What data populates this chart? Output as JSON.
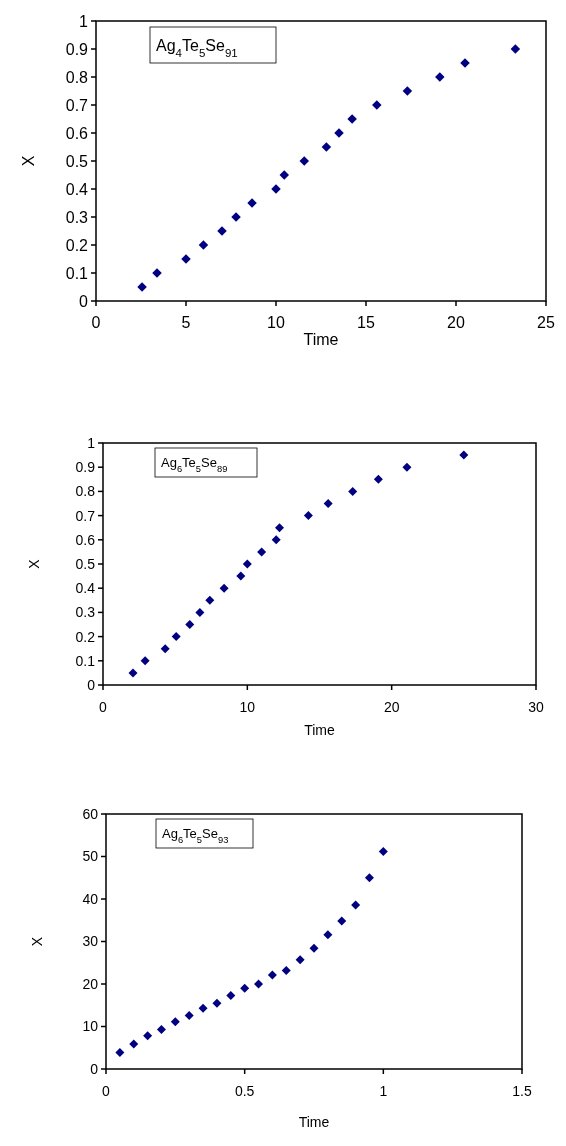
{
  "chart_data": [
    {
      "type": "scatter",
      "xlabel": "Time",
      "ylabel": "X",
      "annotations": [
        "Ag$_{4}$Te$_{5}$Se$_{91}$"
      ],
      "marker": "diamond",
      "grid": false,
      "xlim": [
        0,
        25
      ],
      "xticks": [
        0,
        5,
        10,
        15,
        20,
        25
      ],
      "ylim": [
        0,
        1
      ],
      "yticks": [
        0,
        0.1,
        0.2,
        0.3,
        0.4,
        0.5,
        0.6,
        0.7,
        0.8,
        0.9,
        1
      ],
      "series": [
        {
          "color": "#000080",
          "x": [
            2.56,
            3.39,
            5.0,
            5.97,
            7.0,
            7.78,
            8.67,
            10.0,
            10.46,
            11.57,
            12.8,
            13.5,
            14.23,
            15.6,
            17.3,
            19.1,
            20.5,
            23.3
          ],
          "values": [
            0.05,
            0.1,
            0.15,
            0.2,
            0.25,
            0.3,
            0.35,
            0.4,
            0.45,
            0.5,
            0.55,
            0.6,
            0.65,
            0.7,
            0.75,
            0.8,
            0.85,
            0.9
          ]
        }
      ]
    },
    {
      "type": "scatter",
      "xlabel": "Time",
      "ylabel": "X",
      "annotations": [
        "Ag$_{6}$Te$_{5}$Se$_{89}$"
      ],
      "marker": "diamond",
      "grid": false,
      "xlim": [
        0,
        30
      ],
      "xticks": [
        0,
        10,
        20,
        30
      ],
      "ylim": [
        0,
        1
      ],
      "yticks": [
        0,
        0.1,
        0.2,
        0.3,
        0.4,
        0.5,
        0.6,
        0.7,
        0.8,
        0.9,
        1
      ],
      "series": [
        {
          "color": "#000080",
          "x": [
            2.08,
            2.92,
            4.31,
            5.07,
            6.01,
            6.71,
            7.4,
            8.39,
            9.55,
            10.0,
            10.99,
            12.0,
            12.23,
            14.23,
            15.6,
            17.3,
            19.08,
            21.06,
            25.0
          ],
          "values": [
            0.05,
            0.1,
            0.15,
            0.2,
            0.25,
            0.3,
            0.35,
            0.4,
            0.45,
            0.5,
            0.55,
            0.6,
            0.65,
            0.7,
            0.75,
            0.8,
            0.85,
            0.9,
            0.95
          ]
        }
      ]
    },
    {
      "type": "scatter",
      "xlabel": "Time",
      "ylabel": "X",
      "annotations": [
        "Ag$_{6}$Te$_{5}$Se$_{93}$"
      ],
      "marker": "diamond",
      "grid": false,
      "xlim": [
        0,
        1.5
      ],
      "xticks": [
        0,
        0.5,
        1,
        1.5
      ],
      "ylim": [
        0,
        60
      ],
      "yticks": [
        0,
        10,
        20,
        30,
        40,
        50,
        60
      ],
      "series": [
        {
          "color": "#000080",
          "x": [
            0.05,
            0.1,
            0.15,
            0.2,
            0.25,
            0.3,
            0.35,
            0.4,
            0.45,
            0.5,
            0.55,
            0.6,
            0.65,
            0.7,
            0.75,
            0.8,
            0.85,
            0.9,
            0.95,
            1.0
          ],
          "values": [
            3.9,
            5.9,
            7.8,
            9.3,
            11.1,
            12.6,
            14.3,
            15.5,
            17.3,
            19.0,
            20.0,
            22.1,
            23.2,
            25.7,
            28.4,
            31.6,
            34.8,
            38.6,
            45.0,
            51.2
          ]
        }
      ]
    }
  ]
}
